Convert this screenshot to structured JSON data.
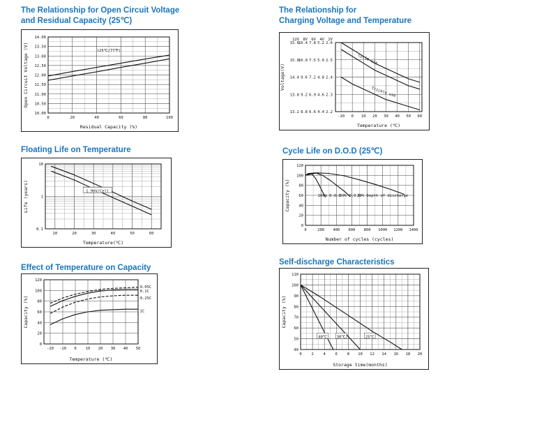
{
  "theme": {
    "title_color": "#1b76bc",
    "curve_color": "#111111",
    "grid_color": "#444444",
    "minor_grid_color": "#999999"
  },
  "chart_data": [
    {
      "type": "line",
      "title_lines": [
        "The Relationship for Open Circuit Voltage",
        "and Residual Capacity (25℃)"
      ],
      "xlabel": "Residual Capacity (%)",
      "ylabel": "Open Circuit Voltage (V)",
      "xlim": [
        0,
        100
      ],
      "ylim": [
        10,
        14
      ],
      "xticks": [
        0,
        20,
        40,
        60,
        80,
        100
      ],
      "xminor": 10,
      "yticks": [
        10,
        10.5,
        11,
        11.5,
        12,
        12.5,
        13,
        13.5,
        14
      ],
      "yminor": 0.25,
      "ytick_labels": [
        "10.00",
        "10.50",
        "11.00",
        "11.50",
        "12.00",
        "12.50",
        "13.00",
        "13.50",
        "14.00"
      ],
      "series": [
        {
          "name": "open-circuit-voltage-upper",
          "points": [
            [
              0,
              11.95
            ],
            [
              20,
              12.18
            ],
            [
              40,
              12.4
            ],
            [
              60,
              12.62
            ],
            [
              80,
              12.84
            ],
            [
              100,
              13.05
            ]
          ]
        },
        {
          "name": "open-circuit-voltage-lower",
          "points": [
            [
              0,
              11.72
            ],
            [
              20,
              11.95
            ],
            [
              40,
              12.17
            ],
            [
              60,
              12.4
            ],
            [
              80,
              12.62
            ],
            [
              100,
              12.85
            ]
          ]
        }
      ],
      "annotations": [
        {
          "x": 50,
          "y": 13.3,
          "text": "(25℃/77℉)"
        }
      ],
      "margins": {
        "l": 38,
        "r": 12,
        "t": 10,
        "b": 26
      }
    },
    {
      "type": "line",
      "title_lines": [
        "The Relationship for",
        "Charging Voltage and Temperature"
      ],
      "xlabel": "Temperature (℃)",
      "ylabel": "Voltage(V)",
      "xlim": [
        -15,
        62
      ],
      "ylim": [
        2.2,
        2.6
      ],
      "xticks": [
        -10,
        0,
        10,
        20,
        30,
        40,
        50,
        60
      ],
      "yticks": [
        2.2,
        2.3,
        2.4,
        2.5,
        2.6
      ],
      "yminor": 0.05,
      "y_columns": {
        "headers": [
          "12V",
          "8V",
          "6V",
          "4V",
          "2V"
        ],
        "rows": [
          [
            "15.6",
            "10.4",
            "7.8",
            "5.2",
            "2.6"
          ],
          [
            "15.0",
            "10.0",
            "7.5",
            "5.0",
            "2.5"
          ],
          [
            "14.4",
            "9.6",
            "7.2",
            "4.8",
            "2.4"
          ],
          [
            "13.8",
            "9.2",
            "6.9",
            "4.6",
            "2.3"
          ],
          [
            "13.2",
            "8.8",
            "6.6",
            "4.4",
            "2.2"
          ]
        ]
      },
      "series": [
        {
          "name": "cycle-use-upper",
          "points": [
            [
              -10,
              2.6
            ],
            [
              0,
              2.56
            ],
            [
              10,
              2.52
            ],
            [
              20,
              2.48
            ],
            [
              30,
              2.45
            ],
            [
              40,
              2.42
            ],
            [
              50,
              2.39
            ],
            [
              60,
              2.37
            ]
          ]
        },
        {
          "name": "cycle-use-lower",
          "points": [
            [
              -10,
              2.56
            ],
            [
              0,
              2.52
            ],
            [
              10,
              2.48
            ],
            [
              20,
              2.44
            ],
            [
              30,
              2.41
            ],
            [
              40,
              2.38
            ],
            [
              50,
              2.35
            ],
            [
              60,
              2.33
            ]
          ]
        },
        {
          "name": "trickle-use",
          "points": [
            [
              -10,
              2.4
            ],
            [
              0,
              2.36
            ],
            [
              10,
              2.33
            ],
            [
              20,
              2.3
            ],
            [
              30,
              2.27
            ],
            [
              40,
              2.25
            ],
            [
              50,
              2.23
            ],
            [
              60,
              2.21
            ]
          ]
        }
      ],
      "annotations": [
        {
          "x": 14,
          "y": 2.505,
          "text": "Cycle use",
          "rotate": 24
        },
        {
          "x": 28,
          "y": 2.315,
          "text": "Trickle use",
          "rotate": 18
        }
      ],
      "margins": {
        "l": 80,
        "r": 10,
        "t": 14,
        "b": 26
      }
    },
    {
      "type": "line",
      "title_lines": [
        "Floating Life on Temperature"
      ],
      "xlabel": "Temperature(℃)",
      "ylabel": "Life (years)",
      "xlim": [
        5,
        65
      ],
      "ylim": [
        0.1,
        10
      ],
      "ylog": true,
      "xticks": [
        10,
        20,
        30,
        40,
        50,
        60
      ],
      "xminor": 5,
      "yticks": [
        0.1,
        1,
        10
      ],
      "ytick_labels": [
        "0.1",
        "1",
        "10"
      ],
      "series": [
        {
          "name": "float-life-upper",
          "points": [
            [
              8,
              8.5
            ],
            [
              20,
              4.6
            ],
            [
              30,
              2.5
            ],
            [
              40,
              1.35
            ],
            [
              50,
              0.72
            ],
            [
              60,
              0.4
            ]
          ]
        },
        {
          "name": "float-life-lower",
          "points": [
            [
              8,
              6.0
            ],
            [
              20,
              3.2
            ],
            [
              30,
              1.7
            ],
            [
              40,
              0.92
            ],
            [
              50,
              0.5
            ],
            [
              60,
              0.27
            ]
          ]
        }
      ],
      "annotations": [
        {
          "x": 32,
          "y": 1.5,
          "text": "1.90V/Cell",
          "boxed": true
        }
      ],
      "margins": {
        "l": 34,
        "r": 14,
        "t": 8,
        "b": 26
      }
    },
    {
      "type": "line",
      "title_lines": [
        "Cycle Life on D.O.D (25℃)"
      ],
      "xlabel": "Number of cycles (cycles)",
      "ylabel": "Capacity (%)",
      "xlim": [
        0,
        1400
      ],
      "ylim": [
        0,
        120
      ],
      "xticks": [
        0,
        200,
        400,
        600,
        800,
        1000,
        1200,
        1400
      ],
      "xminor": 100,
      "yticks": [
        0,
        20,
        40,
        60,
        80,
        100,
        120
      ],
      "series": [
        {
          "name": "dod-100",
          "points": [
            [
              0,
              100
            ],
            [
              40,
              104
            ],
            [
              80,
              103
            ],
            [
              130,
              94
            ],
            [
              180,
              80
            ],
            [
              230,
              64
            ],
            [
              260,
              56
            ]
          ]
        },
        {
          "name": "dod-50",
          "points": [
            [
              0,
              100
            ],
            [
              60,
              104
            ],
            [
              130,
              105
            ],
            [
              220,
              100
            ],
            [
              320,
              90
            ],
            [
              420,
              78
            ],
            [
              520,
              66
            ],
            [
              580,
              57
            ]
          ]
        },
        {
          "name": "dod-30",
          "points": [
            [
              0,
              100
            ],
            [
              150,
              105
            ],
            [
              300,
              104
            ],
            [
              500,
              99
            ],
            [
              700,
              91
            ],
            [
              900,
              82
            ],
            [
              1100,
              72
            ],
            [
              1280,
              62
            ]
          ]
        }
      ],
      "annotations": [
        {
          "x": 310,
          "y": 60,
          "text": "100% D.O.D"
        },
        {
          "x": 580,
          "y": 60,
          "text": "50% D.O.D"
        },
        {
          "x": 1000,
          "y": 60,
          "text": "30% Depth of discharge"
        }
      ],
      "margins": {
        "l": 32,
        "r": 12,
        "t": 8,
        "b": 26
      }
    },
    {
      "type": "line",
      "title_lines": [
        "Effect of Temperature on Capacity"
      ],
      "xlabel": "Temperature (℃)",
      "ylabel": "Capacity (%)",
      "xlim": [
        -25,
        50
      ],
      "ylim": [
        0,
        120
      ],
      "xticks": [
        -20,
        -10,
        0,
        10,
        20,
        30,
        40,
        50
      ],
      "yticks": [
        0,
        20,
        40,
        60,
        80,
        100,
        120
      ],
      "series": [
        {
          "name": "rate-0.05C",
          "dash": "4,2",
          "points": [
            [
              -20,
              76
            ],
            [
              -10,
              86
            ],
            [
              0,
              93
            ],
            [
              10,
              98
            ],
            [
              20,
              102
            ],
            [
              30,
              104
            ],
            [
              40,
              105
            ],
            [
              50,
              106
            ]
          ]
        },
        {
          "name": "rate-0.1C",
          "points": [
            [
              -20,
              70
            ],
            [
              -10,
              81
            ],
            [
              0,
              89
            ],
            [
              10,
              95
            ],
            [
              20,
              99
            ],
            [
              30,
              101
            ],
            [
              40,
              102
            ],
            [
              50,
              102
            ]
          ]
        },
        {
          "name": "rate-0.25C",
          "dash": "4,2",
          "points": [
            [
              -20,
              57
            ],
            [
              -10,
              69
            ],
            [
              0,
              78
            ],
            [
              10,
              84
            ],
            [
              20,
              88
            ],
            [
              30,
              90
            ],
            [
              40,
              91
            ],
            [
              50,
              91
            ]
          ]
        },
        {
          "name": "rate-1C",
          "points": [
            [
              -20,
              36
            ],
            [
              -10,
              47
            ],
            [
              0,
              55
            ],
            [
              10,
              60
            ],
            [
              20,
              63
            ],
            [
              30,
              64
            ],
            [
              40,
              65
            ],
            [
              50,
              65
            ]
          ]
        }
      ],
      "annotations": [
        {
          "x": 51.5,
          "y": 107,
          "text": "0.05C",
          "anchor": "start"
        },
        {
          "x": 51.5,
          "y": 99,
          "text": "0.1C",
          "anchor": "start"
        },
        {
          "x": 51.5,
          "y": 86,
          "text": "0.25C",
          "anchor": "start"
        },
        {
          "x": 51.5,
          "y": 62,
          "text": "1C",
          "anchor": "start"
        }
      ],
      "margins": {
        "l": 32,
        "r": 27,
        "t": 8,
        "b": 28
      }
    },
    {
      "type": "line",
      "title_lines": [
        "Self-discharge Characteristics"
      ],
      "xlabel": "Storage time(months)",
      "ylabel": "Capacity (%)",
      "xlim": [
        0,
        20
      ],
      "ylim": [
        40,
        110
      ],
      "xticks": [
        0,
        2,
        4,
        6,
        8,
        10,
        12,
        14,
        16,
        18,
        20
      ],
      "xminor": 1,
      "yticks": [
        40,
        50,
        60,
        70,
        80,
        90,
        100,
        110
      ],
      "yminor": 5,
      "series": [
        {
          "name": "self-discharge-fast",
          "points": [
            [
              0,
              100
            ],
            [
              1,
              89
            ],
            [
              2,
              78
            ],
            [
              3,
              67
            ],
            [
              4,
              56
            ],
            [
              5,
              45
            ],
            [
              5.5,
              40
            ]
          ]
        },
        {
          "name": "self-discharge-medium",
          "points": [
            [
              0,
              100
            ],
            [
              2,
              88
            ],
            [
              4,
              76
            ],
            [
              6,
              64
            ],
            [
              8,
              52
            ],
            [
              10,
              40
            ]
          ]
        },
        {
          "name": "self-discharge-slow",
          "points": [
            [
              0,
              100
            ],
            [
              3,
              90
            ],
            [
              6,
              79
            ],
            [
              9,
              68
            ],
            [
              12,
              57
            ],
            [
              15,
              47
            ],
            [
              17,
              40
            ]
          ]
        }
      ],
      "annotations": [
        {
          "x": 3.7,
          "y": 52,
          "text": "40℃",
          "boxed": true
        },
        {
          "x": 6.8,
          "y": 52,
          "text": "30℃",
          "boxed": true
        },
        {
          "x": 11.6,
          "y": 52,
          "text": "25℃",
          "boxed": true
        }
      ],
      "margins": {
        "l": 30,
        "r": 12,
        "t": 8,
        "b": 28
      }
    }
  ]
}
